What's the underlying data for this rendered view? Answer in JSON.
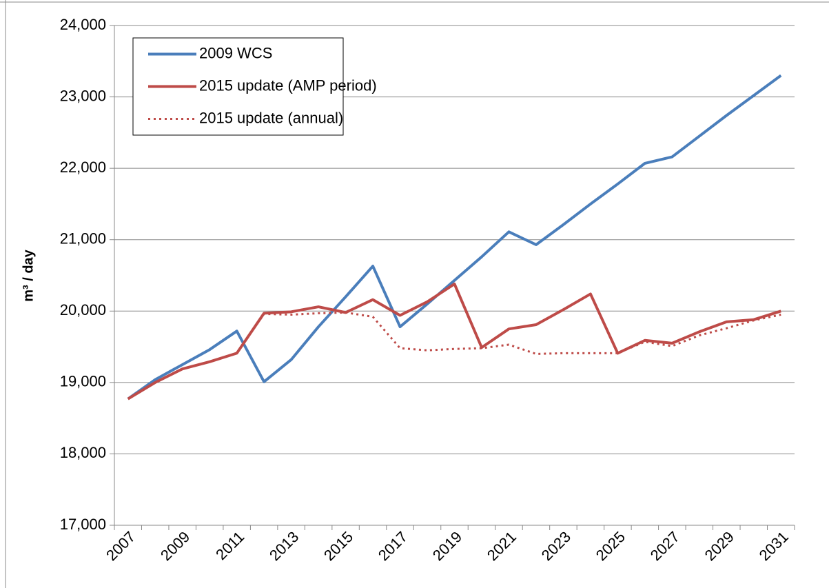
{
  "chart_data": {
    "type": "line",
    "y_label": "m³ / day",
    "categories": [
      "2007",
      null,
      "2009",
      null,
      "2011",
      null,
      "2013",
      null,
      "2015",
      null,
      "2017",
      null,
      "2019",
      null,
      "2021",
      null,
      "2023",
      null,
      "2025",
      null,
      "2027",
      null,
      "2029",
      null,
      "2031"
    ],
    "series": [
      {
        "name": "2009 WCS",
        "color": "#4a7ebb",
        "style": "solid",
        "values": [
          18770,
          19040,
          19250,
          19460,
          19720,
          19010,
          19320,
          19780,
          20200,
          20630,
          19780,
          20100,
          20430,
          20760,
          21110,
          20930,
          21210,
          21500,
          21780,
          22070,
          22160,
          22450,
          22740,
          23020,
          23300
        ]
      },
      {
        "name": "2015 update (AMP period)",
        "color": "#be4b48",
        "style": "solid",
        "values": [
          18770,
          19000,
          19190,
          19290,
          19410,
          19970,
          19990,
          20060,
          19980,
          20160,
          19940,
          20130,
          20380,
          19490,
          19750,
          19810,
          20020,
          20240,
          19410,
          19590,
          19550,
          19710,
          19850,
          19880,
          20000
        ]
      },
      {
        "name": "2015 update (annual)",
        "color": "#be4b48",
        "style": "dotted",
        "values": [
          18770,
          19000,
          19190,
          19290,
          19410,
          19960,
          19950,
          19970,
          19980,
          19920,
          19480,
          19450,
          19470,
          19480,
          19530,
          19400,
          19410,
          19410,
          19410,
          19570,
          19510,
          19660,
          19760,
          19870,
          19950
        ]
      }
    ],
    "ylim": [
      17000,
      24000
    ],
    "yticks": [
      {
        "value": 17000,
        "label": "17,000"
      },
      {
        "value": 18000,
        "label": "18,000"
      },
      {
        "value": 19000,
        "label": "19,000"
      },
      {
        "value": 20000,
        "label": "20,000"
      },
      {
        "value": 21000,
        "label": "21,000"
      },
      {
        "value": 22000,
        "label": "22,000"
      },
      {
        "value": 23000,
        "label": "23,000"
      },
      {
        "value": 24000,
        "label": "24,000"
      }
    ],
    "grid": true,
    "legend": "upper left"
  }
}
